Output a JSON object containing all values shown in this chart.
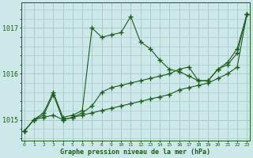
{
  "title": "Graphe pression niveau de la mer (hPa)",
  "xlabel_ticks": [
    0,
    1,
    2,
    3,
    4,
    5,
    6,
    7,
    8,
    9,
    10,
    11,
    12,
    13,
    14,
    15,
    16,
    17,
    18,
    19,
    20,
    21,
    22,
    23
  ],
  "yticks": [
    1015,
    1016,
    1017
  ],
  "ylim": [
    1014.55,
    1017.55
  ],
  "xlim": [
    -0.3,
    23.3
  ],
  "bg_color": "#cce8e8",
  "grid_color": "#aacccc",
  "line_color": "#1a5c1a",
  "series_bottom": [
    1014.75,
    1015.0,
    1015.05,
    1015.1,
    1015.0,
    1015.05,
    1015.1,
    1015.15,
    1015.2,
    1015.25,
    1015.3,
    1015.35,
    1015.4,
    1015.45,
    1015.5,
    1015.55,
    1015.65,
    1015.7,
    1015.75,
    1015.8,
    1015.9,
    1016.0,
    1016.15,
    1017.3
  ],
  "series_mid": [
    1014.75,
    1015.0,
    1015.1,
    1015.55,
    1015.0,
    1015.05,
    1015.15,
    1015.3,
    1015.6,
    1015.7,
    1015.75,
    1015.8,
    1015.85,
    1015.9,
    1015.95,
    1016.0,
    1016.1,
    1016.15,
    1015.85,
    1015.85,
    1016.1,
    1016.2,
    1016.45,
    1017.3
  ],
  "series_top": [
    1014.75,
    1015.0,
    1015.15,
    1015.6,
    1015.05,
    1015.1,
    1015.2,
    1017.0,
    1016.8,
    1016.85,
    1016.9,
    1017.25,
    1016.7,
    1016.55,
    1016.3,
    1016.1,
    1016.05,
    1015.95,
    1015.85,
    1015.85,
    1016.1,
    1016.25,
    1016.55,
    1017.3
  ]
}
